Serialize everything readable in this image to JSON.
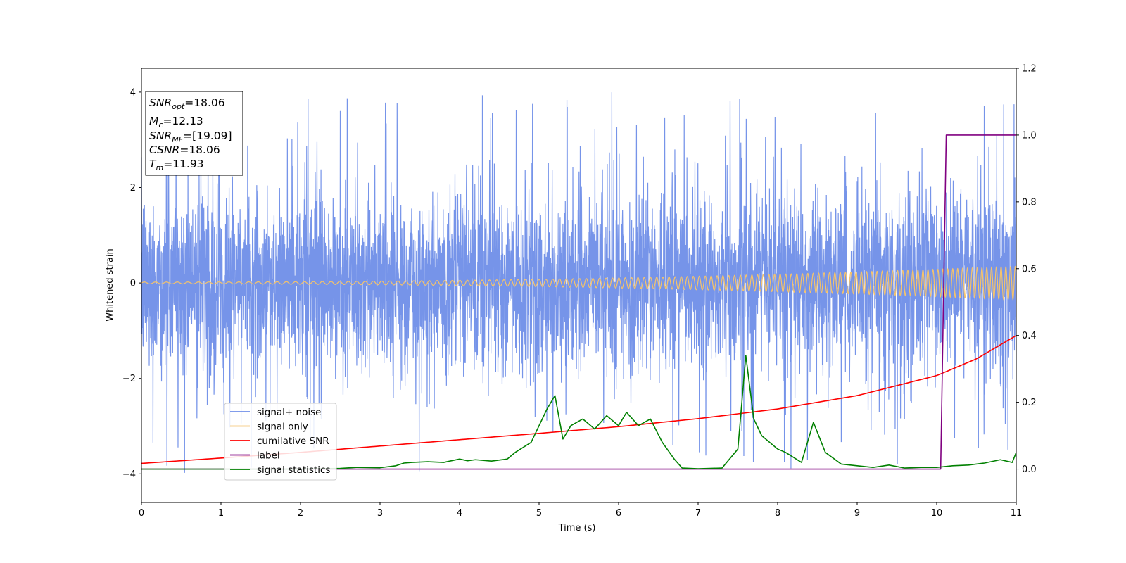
{
  "chart_data": {
    "type": "line",
    "xlabel": "Time (s)",
    "ylabel": "Whitened strain",
    "xlim": [
      0,
      11
    ],
    "ylim_left": [
      -4.6,
      4.5
    ],
    "ylim_right": [
      -0.1,
      1.2
    ],
    "x_ticks": [
      "0",
      "1",
      "2",
      "3",
      "4",
      "5",
      "6",
      "7",
      "8",
      "9",
      "10",
      "11"
    ],
    "y_ticks_left": [
      "−4",
      "−2",
      "0",
      "2",
      "4"
    ],
    "y_ticks_right": [
      "0.0",
      "0.2",
      "0.4",
      "0.6",
      "0.8",
      "1.0",
      "1.2"
    ],
    "legend_position": "lower-left",
    "series": [
      {
        "name": "signal+ noise",
        "color": "#6f8ee8",
        "axis": "left",
        "description": "dense noise around 0, range about -4.1 to 4.1",
        "envelope_amplitude": 1.6,
        "peak_max": 4.1,
        "peak_min": -4.15
      },
      {
        "name": "signal only",
        "color": "#f5c36b",
        "axis": "left",
        "description": "chirp with amplitude growing from about 0.02 at t=0 to about 0.35 at t=11",
        "amplitude_start": 0.02,
        "amplitude_end": 0.35
      },
      {
        "name": "cumilative SNR",
        "color": "#ff0000",
        "axis": "right",
        "x": [
          0,
          1,
          2,
          3,
          4,
          5,
          6,
          7,
          8,
          9,
          10,
          10.5,
          11
        ],
        "y": [
          0.017,
          0.033,
          0.05,
          0.069,
          0.088,
          0.107,
          0.127,
          0.151,
          0.18,
          0.22,
          0.28,
          0.33,
          0.4
        ]
      },
      {
        "name": "label",
        "color": "#800080",
        "axis": "right",
        "x": [
          0,
          10.05,
          10.12,
          11
        ],
        "y": [
          0.0,
          0.0,
          1.0,
          1.0
        ]
      },
      {
        "name": "signal statistics",
        "color": "#008000",
        "axis": "right",
        "x": [
          0,
          0.5,
          1,
          1.5,
          2,
          2.5,
          2.7,
          3,
          3.2,
          3.3,
          3.4,
          3.6,
          3.8,
          4,
          4.1,
          4.2,
          4.4,
          4.6,
          4.7,
          4.9,
          5.0,
          5.1,
          5.2,
          5.3,
          5.4,
          5.55,
          5.7,
          5.85,
          6.0,
          6.1,
          6.25,
          6.4,
          6.55,
          6.7,
          6.8,
          7.0,
          7.3,
          7.5,
          7.6,
          7.7,
          7.8,
          7.9,
          8.0,
          8.1,
          8.3,
          8.45,
          8.6,
          8.8,
          9.0,
          9.2,
          9.4,
          9.6,
          9.8,
          10.0,
          10.2,
          10.4,
          10.6,
          10.8,
          10.95,
          11.0
        ],
        "y": [
          0.0,
          0.0,
          0.0,
          0.0,
          0.0,
          0.002,
          0.005,
          0.004,
          0.01,
          0.018,
          0.02,
          0.022,
          0.02,
          0.03,
          0.025,
          0.028,
          0.024,
          0.03,
          0.05,
          0.08,
          0.13,
          0.18,
          0.22,
          0.09,
          0.13,
          0.15,
          0.12,
          0.16,
          0.13,
          0.17,
          0.13,
          0.15,
          0.08,
          0.03,
          0.003,
          0.001,
          0.003,
          0.06,
          0.34,
          0.15,
          0.1,
          0.08,
          0.06,
          0.05,
          0.02,
          0.14,
          0.05,
          0.015,
          0.01,
          0.005,
          0.012,
          0.003,
          0.005,
          0.005,
          0.01,
          0.012,
          0.018,
          0.028,
          0.02,
          0.05
        ]
      }
    ],
    "legend": [
      "signal+ noise",
      "signal only",
      "cumilative SNR",
      "label",
      "signal statistics"
    ]
  },
  "info_box": {
    "lines": [
      {
        "sym": "SNR",
        "sub": "opt",
        "value": "=18.06"
      },
      {
        "sym": "M",
        "sub": "c",
        "value": "=12.13"
      },
      {
        "sym": "SNR",
        "sub": "MF",
        "value": "=[19.09]"
      },
      {
        "sym": "CSNR",
        "sub": "",
        "value": "=18.06"
      },
      {
        "sym": "T",
        "sub": "m",
        "value": "=11.93"
      }
    ]
  }
}
